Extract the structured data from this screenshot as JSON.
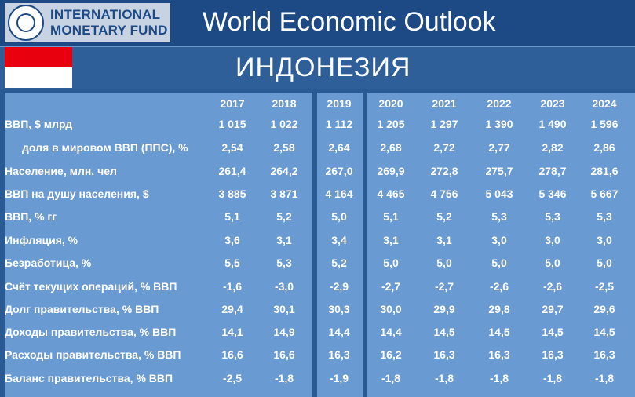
{
  "logo": {
    "line1": "INTERNATIONAL",
    "line2": "MONETARY FUND"
  },
  "title": "World Economic Outlook",
  "country": "ИНДОНЕЗИЯ",
  "years": [
    "2017",
    "2018",
    "2019",
    "2020",
    "2021",
    "2022",
    "2023",
    "2024"
  ],
  "rows": [
    {
      "label": "ВВП, $ млрд",
      "indent": false,
      "values": [
        "1 015",
        "1 022",
        "1 112",
        "1 205",
        "1 297",
        "1 390",
        "1 490",
        "1 596"
      ]
    },
    {
      "label": "доля в мировом ВВП (ППС), %",
      "indent": true,
      "values": [
        "2,54",
        "2,58",
        "2,64",
        "2,68",
        "2,72",
        "2,77",
        "2,82",
        "2,86"
      ]
    },
    {
      "label": "Население, млн. чел",
      "indent": false,
      "values": [
        "261,4",
        "264,2",
        "267,0",
        "269,9",
        "272,8",
        "275,7",
        "278,7",
        "281,6"
      ]
    },
    {
      "label": "ВВП на душу населения, $",
      "indent": false,
      "values": [
        "3 885",
        "3 871",
        "4 164",
        "4 465",
        "4 756",
        "5 043",
        "5 346",
        "5 667"
      ]
    },
    {
      "label": "ВВП, % гг",
      "indent": false,
      "values": [
        "5,1",
        "5,2",
        "5,0",
        "5,1",
        "5,2",
        "5,3",
        "5,3",
        "5,3"
      ]
    },
    {
      "label": "Инфляция, %",
      "indent": false,
      "values": [
        "3,6",
        "3,1",
        "3,4",
        "3,1",
        "3,1",
        "3,0",
        "3,0",
        "3,0"
      ]
    },
    {
      "label": "Безработица, %",
      "indent": false,
      "values": [
        "5,5",
        "5,3",
        "5,2",
        "5,0",
        "5,0",
        "5,0",
        "5,0",
        "5,0"
      ]
    },
    {
      "label": "Счёт текущих операций, % ВВП",
      "indent": false,
      "values": [
        "-1,6",
        "-3,0",
        "-2,9",
        "-2,7",
        "-2,7",
        "-2,6",
        "-2,6",
        "-2,5"
      ]
    },
    {
      "label": "Долг правительства, % ВВП",
      "indent": false,
      "values": [
        "29,4",
        "30,1",
        "30,3",
        "30,0",
        "29,9",
        "29,8",
        "29,7",
        "29,6"
      ]
    },
    {
      "label": "Доходы правительства, % ВВП",
      "indent": false,
      "values": [
        "14,1",
        "14,9",
        "14,4",
        "14,4",
        "14,5",
        "14,5",
        "14,5",
        "14,5"
      ]
    },
    {
      "label": "Расходы правительства, % ВВП",
      "indent": false,
      "values": [
        "16,6",
        "16,6",
        "16,3",
        "16,2",
        "16,3",
        "16,3",
        "16,3",
        "16,3"
      ]
    },
    {
      "label": "Баланс правительства, % ВВП",
      "indent": false,
      "values": [
        "-2,5",
        "-1,8",
        "-1,9",
        "-1,8",
        "-1,8",
        "-1,8",
        "-1,8",
        "-1,8"
      ]
    }
  ],
  "colors": {
    "header": "#1d4a84",
    "background": "#2a5a94",
    "panel": "#6a9ad2",
    "flag_red": "#e8000f",
    "flag_white": "#ffffff"
  }
}
